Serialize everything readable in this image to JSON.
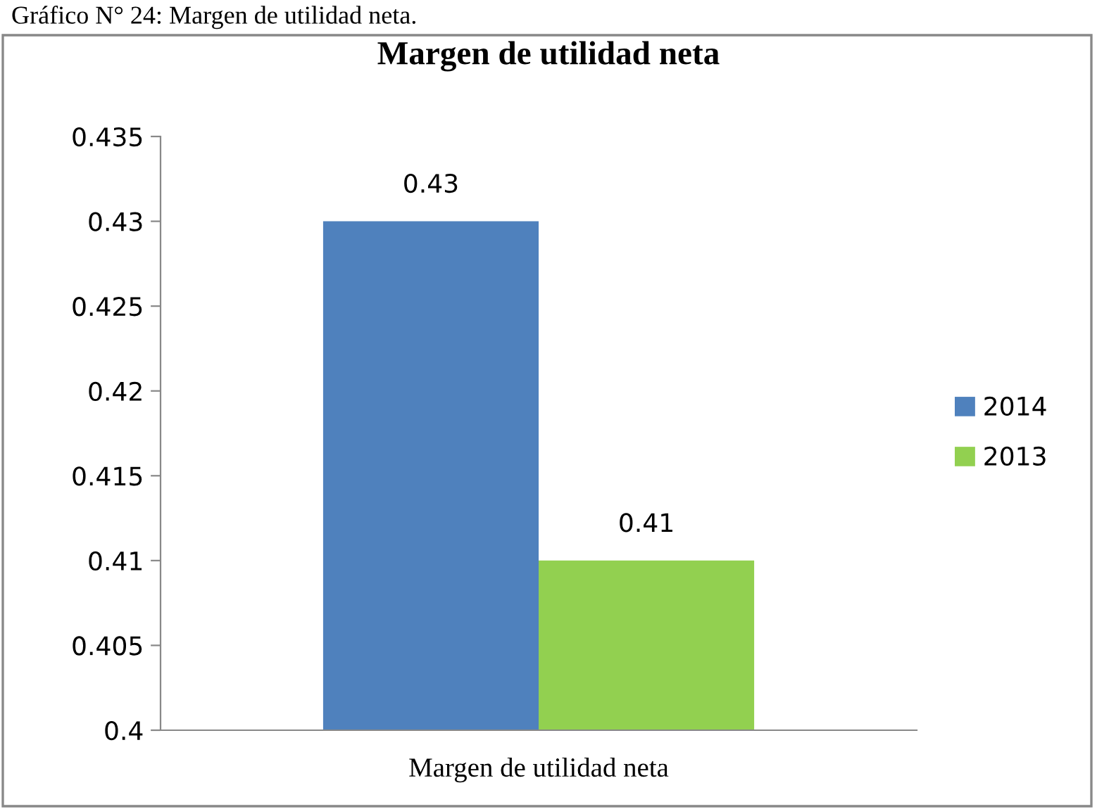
{
  "chart_data": {
    "type": "bar",
    "title": "Margen de utilidad neta",
    "annotations": [
      "Gráfico N° 24: Margen de utilidad neta."
    ],
    "categories": [
      "Margen de utilidad neta"
    ],
    "series": [
      {
        "name": "2014",
        "color": "#4f81bd",
        "values": [
          0.43
        ]
      },
      {
        "name": "2013",
        "color": "#92d050",
        "values": [
          0.41
        ]
      }
    ],
    "ylim": [
      0.4,
      0.435
    ],
    "yticks": [
      0.4,
      0.405,
      0.41,
      0.415,
      0.42,
      0.425,
      0.43,
      0.435
    ],
    "data_labels": true,
    "grid": false,
    "legend": "right"
  }
}
